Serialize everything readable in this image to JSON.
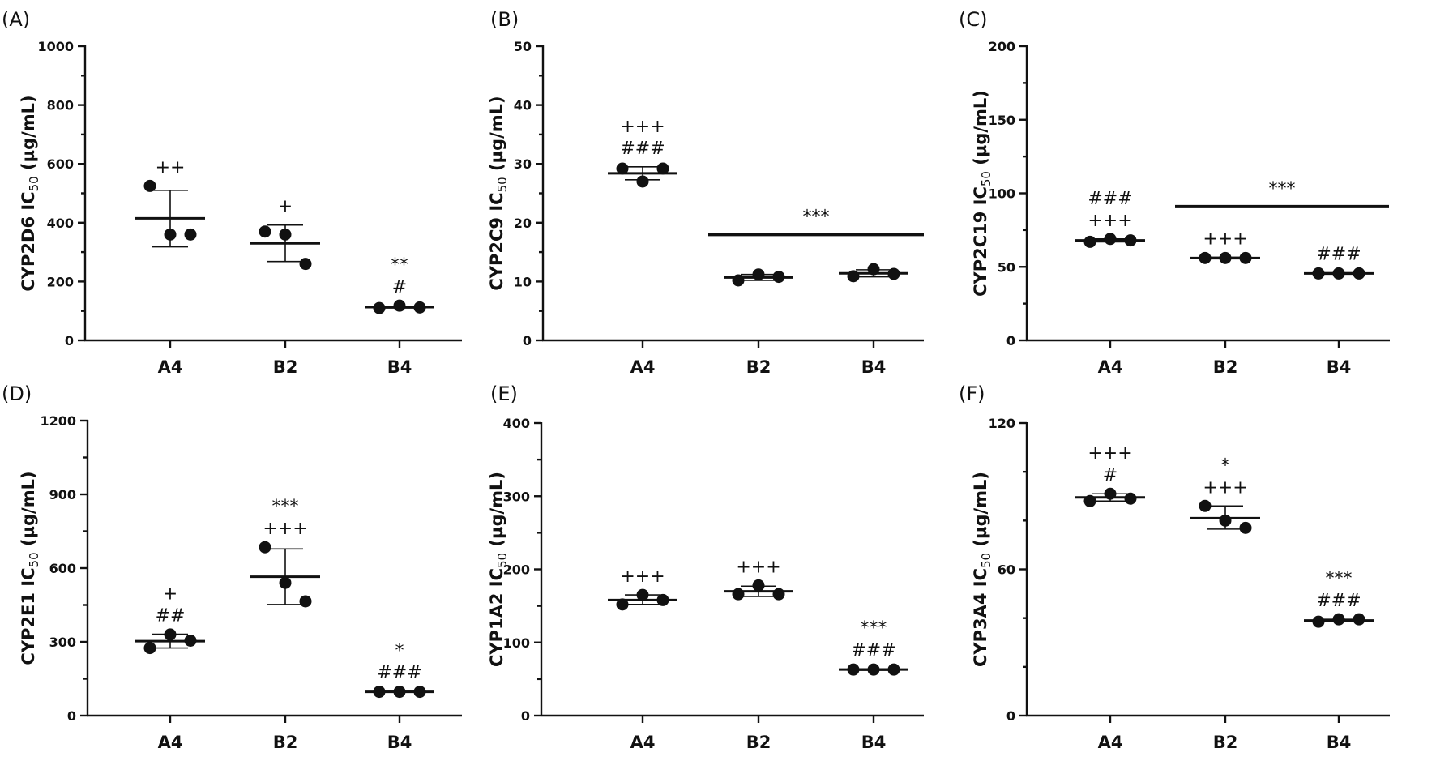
{
  "chart_data": [
    {
      "type": "scatter",
      "panel_label": "(A)",
      "ylabel_main": "CYP2D6 IC",
      "ylabel_sub": "50",
      "ylabel_unit": " (µg/mL)",
      "categories": [
        "A4",
        "B2",
        "B4"
      ],
      "ylim": [
        0,
        1000
      ],
      "yticks": [
        0,
        200,
        400,
        600,
        800,
        1000
      ],
      "ytick_labels": [
        "0",
        "200",
        "400",
        "600",
        "800",
        "1000"
      ],
      "minor_ticks": [
        100,
        300,
        500,
        700,
        900
      ],
      "groups": [
        {
          "points": [
            525,
            360,
            360
          ],
          "mean": 415,
          "sd_low": 318,
          "sd_high": 510,
          "annotations": [
            "++"
          ]
        },
        {
          "points": [
            370,
            360,
            260
          ],
          "mean": 330,
          "sd_low": 268,
          "sd_high": 392,
          "annotations": [
            "+"
          ]
        },
        {
          "points": [
            110,
            118,
            112
          ],
          "mean": 113,
          "sd_low": 110,
          "sd_high": 116,
          "annotations": [
            "**",
            "#"
          ]
        }
      ],
      "bar_annotations": [],
      "grid": false,
      "legend": "none"
    },
    {
      "type": "scatter",
      "panel_label": "(B)",
      "ylabel_main": "CYP2C9 IC",
      "ylabel_sub": "50",
      "ylabel_unit": " (µg/mL)",
      "categories": [
        "A4",
        "B2",
        "B4"
      ],
      "ylim": [
        0,
        50
      ],
      "yticks": [
        0,
        10,
        20,
        30,
        40,
        50
      ],
      "ytick_labels": [
        "0",
        "10",
        "20",
        "30",
        "40",
        "50"
      ],
      "minor_ticks": [
        5,
        15,
        25,
        35,
        45
      ],
      "groups": [
        {
          "points": [
            29.2,
            27.0,
            29.2
          ],
          "mean": 28.4,
          "sd_low": 27.3,
          "sd_high": 29.5,
          "annotations": [
            "+++",
            "###"
          ]
        },
        {
          "points": [
            10.2,
            11.2,
            10.8
          ],
          "mean": 10.7,
          "sd_low": 10.2,
          "sd_high": 11.2,
          "annotations": []
        },
        {
          "points": [
            10.9,
            12.1,
            11.3
          ],
          "mean": 11.4,
          "sd_low": 10.8,
          "sd_high": 12.0,
          "annotations": []
        }
      ],
      "bar_annotations": [
        {
          "from": 1,
          "to": 2,
          "y": 18,
          "label": "***"
        }
      ],
      "grid": false,
      "legend": "none"
    },
    {
      "type": "scatter",
      "panel_label": "(C)",
      "ylabel_main": "CYP2C19 IC",
      "ylabel_sub": "50",
      "ylabel_unit": " (µg/mL)",
      "categories": [
        "A4",
        "B2",
        "B4"
      ],
      "ylim": [
        0,
        200
      ],
      "yticks": [
        0,
        50,
        100,
        150,
        200
      ],
      "ytick_labels": [
        "0",
        "50",
        "100",
        "150",
        "200"
      ],
      "minor_ticks": [
        25,
        75,
        125,
        175
      ],
      "groups": [
        {
          "points": [
            67,
            69,
            68
          ],
          "mean": 68,
          "sd_low": 67,
          "sd_high": 69,
          "annotations": [
            "###",
            "+++"
          ]
        },
        {
          "points": [
            56,
            56,
            56
          ],
          "mean": 56,
          "sd_low": 55.5,
          "sd_high": 56.5,
          "annotations": [
            "+++"
          ]
        },
        {
          "points": [
            45.5,
            45.5,
            45.5
          ],
          "mean": 45.5,
          "sd_low": 45,
          "sd_high": 46,
          "annotations": [
            "###"
          ]
        }
      ],
      "bar_annotations": [
        {
          "from": 1,
          "to": 2,
          "y": 91,
          "label": "***"
        }
      ],
      "grid": false,
      "legend": "none"
    },
    {
      "type": "scatter",
      "panel_label": "(D)",
      "ylabel_main": "CYP2E1 IC",
      "ylabel_sub": "50",
      "ylabel_unit": " (µg/mL)",
      "categories": [
        "A4",
        "B2",
        "B4"
      ],
      "ylim": [
        0,
        1200
      ],
      "yticks": [
        0,
        300,
        600,
        900,
        1200
      ],
      "ytick_labels": [
        "0",
        "300",
        "600",
        "900",
        "1200"
      ],
      "minor_ticks": [
        150,
        450,
        750,
        1050
      ],
      "groups": [
        {
          "points": [
            275,
            330,
            305
          ],
          "mean": 303,
          "sd_low": 275,
          "sd_high": 331,
          "annotations": [
            "+",
            "##"
          ]
        },
        {
          "points": [
            685,
            540,
            465
          ],
          "mean": 565,
          "sd_low": 452,
          "sd_high": 678,
          "annotations": [
            "***",
            "+++"
          ]
        },
        {
          "points": [
            97,
            97,
            97
          ],
          "mean": 97,
          "sd_low": 95,
          "sd_high": 99,
          "annotations": [
            "*",
            "###"
          ]
        }
      ],
      "bar_annotations": [],
      "grid": false,
      "legend": "none"
    },
    {
      "type": "scatter",
      "panel_label": "(E)",
      "ylabel_main": "CYP1A2 IC",
      "ylabel_sub": "50",
      "ylabel_unit": " (µg/mL)",
      "categories": [
        "A4",
        "B2",
        "B4"
      ],
      "ylim": [
        0,
        400
      ],
      "yticks": [
        0,
        100,
        200,
        300,
        400
      ],
      "ytick_labels": [
        "0",
        "100",
        "200",
        "300",
        "400"
      ],
      "minor_ticks": [
        50,
        150,
        250,
        350
      ],
      "groups": [
        {
          "points": [
            152,
            165,
            158
          ],
          "mean": 158,
          "sd_low": 152,
          "sd_high": 165,
          "annotations": [
            "+++"
          ]
        },
        {
          "points": [
            166,
            178,
            166
          ],
          "mean": 170,
          "sd_low": 163,
          "sd_high": 177,
          "annotations": [
            "+++"
          ]
        },
        {
          "points": [
            63,
            63,
            63
          ],
          "mean": 63,
          "sd_low": 62,
          "sd_high": 64,
          "annotations": [
            "***",
            "###"
          ]
        }
      ],
      "bar_annotations": [],
      "grid": false,
      "legend": "none"
    },
    {
      "type": "scatter",
      "panel_label": "(F)",
      "ylabel_main": "CYP3A4 IC",
      "ylabel_sub": "50",
      "ylabel_unit": " (µg/mL)",
      "categories": [
        "A4",
        "B2",
        "B4"
      ],
      "ylim": [
        0,
        120
      ],
      "yticks": [
        0,
        60,
        120
      ],
      "ytick_labels": [
        "0",
        "60",
        "120"
      ],
      "minor_ticks": [
        20,
        40,
        80,
        100
      ],
      "groups": [
        {
          "points": [
            88,
            91,
            89
          ],
          "mean": 89.5,
          "sd_low": 88,
          "sd_high": 91,
          "annotations": [
            "+++",
            "#"
          ]
        },
        {
          "points": [
            86,
            80,
            77
          ],
          "mean": 81,
          "sd_low": 76.5,
          "sd_high": 86,
          "annotations": [
            "*",
            "+++"
          ]
        },
        {
          "points": [
            38.5,
            39.5,
            39.5
          ],
          "mean": 39,
          "sd_low": 38.5,
          "sd_high": 39.5,
          "annotations": [
            "***",
            "###"
          ]
        }
      ],
      "bar_annotations": [],
      "grid": false,
      "legend": "none"
    }
  ]
}
